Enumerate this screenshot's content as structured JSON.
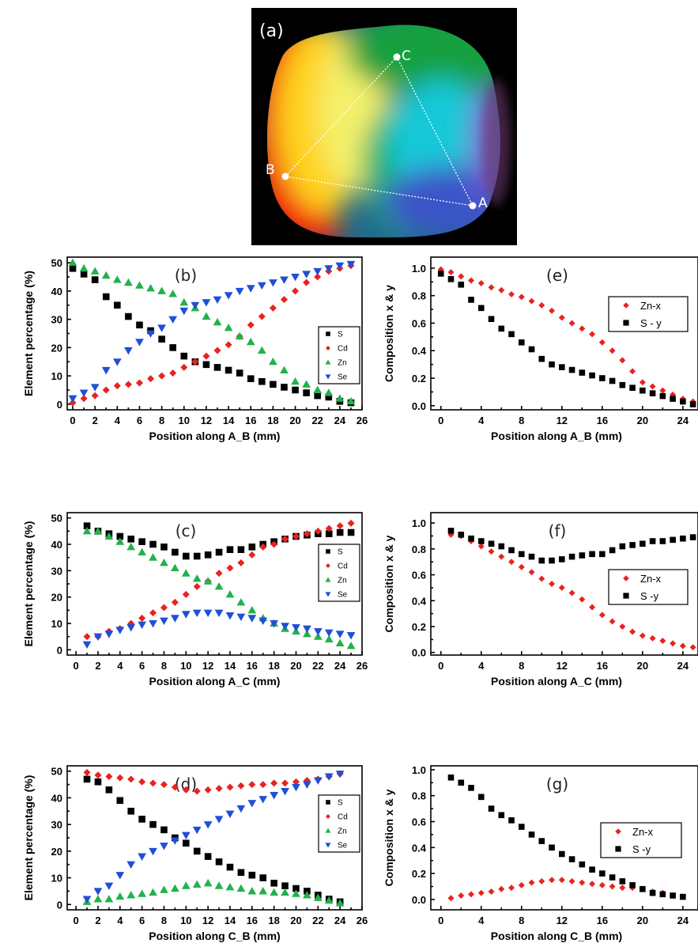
{
  "photo": {
    "label": "(a)",
    "points": [
      "A",
      "B",
      "C"
    ]
  },
  "colors": {
    "S": "#000000",
    "Cd": "#e8231f",
    "Zn": "#22b14c",
    "Se": "#1f4fd6"
  },
  "chart_data": [
    {
      "id": "b",
      "type": "scatter",
      "panel_label": "(b)",
      "xlabel": "Position along A_B (mm)",
      "ylabel": "Element percentage (%)",
      "xlim": [
        -0.5,
        26
      ],
      "ylim": [
        -2,
        52
      ],
      "xticks": [
        0,
        2,
        4,
        6,
        8,
        10,
        12,
        14,
        16,
        18,
        20,
        22,
        24,
        26
      ],
      "yticks": [
        0,
        10,
        20,
        30,
        40,
        50
      ],
      "legend": {
        "position": "right",
        "size": "small"
      },
      "x": [
        0,
        1,
        2,
        3,
        4,
        5,
        6,
        7,
        8,
        9,
        10,
        11,
        12,
        13,
        14,
        15,
        16,
        17,
        18,
        19,
        20,
        21,
        22,
        23,
        24,
        25
      ],
      "series": [
        {
          "name": "S",
          "marker": "square",
          "values": [
            48,
            46,
            44,
            38,
            35,
            31,
            28,
            26,
            23,
            20,
            17,
            15,
            14,
            13,
            12,
            11,
            9,
            8,
            7,
            6,
            5,
            4,
            3,
            2.5,
            1,
            0.5
          ]
        },
        {
          "name": "Cd",
          "marker": "circle",
          "values": [
            0.5,
            2,
            3,
            5,
            6.5,
            7,
            7.5,
            9,
            10,
            11,
            13,
            15,
            17,
            19,
            21,
            24,
            28,
            31,
            34,
            37,
            40,
            43,
            45,
            47,
            48,
            49
          ]
        },
        {
          "name": "Zn",
          "marker": "triangle-up",
          "values": [
            50,
            48,
            47,
            45.5,
            44,
            43,
            42,
            41,
            40,
            39,
            36,
            34,
            31,
            29,
            27,
            24,
            22,
            19,
            15,
            12,
            8,
            7,
            5,
            4,
            2,
            1
          ]
        },
        {
          "name": "Se",
          "marker": "triangle-down",
          "values": [
            2,
            4,
            6,
            12,
            15,
            19,
            22,
            25,
            27,
            30,
            33,
            35,
            36,
            37,
            38.5,
            40,
            41,
            42,
            43,
            44,
            45,
            46,
            47,
            48,
            49,
            49.5
          ]
        }
      ]
    },
    {
      "id": "c",
      "type": "scatter",
      "panel_label": "(c)",
      "xlabel": "Position along A_C (mm)",
      "ylabel": "Element percentage (%)",
      "xlim": [
        -0.8,
        26
      ],
      "ylim": [
        -2,
        52
      ],
      "xticks": [
        0,
        2,
        4,
        6,
        8,
        10,
        12,
        14,
        16,
        18,
        20,
        22,
        24,
        26
      ],
      "yticks": [
        0,
        10,
        20,
        30,
        40,
        50
      ],
      "legend": {
        "position": "right",
        "size": "small"
      },
      "x": [
        1,
        2,
        3,
        4,
        5,
        6,
        7,
        8,
        9,
        10,
        11,
        12,
        13,
        14,
        15,
        16,
        17,
        18,
        19,
        20,
        21,
        22,
        23,
        24,
        25
      ],
      "series": [
        {
          "name": "S",
          "marker": "square",
          "values": [
            47,
            45,
            44,
            43,
            42,
            41,
            40,
            39,
            37,
            35.5,
            35.5,
            36,
            37,
            38,
            38,
            39,
            40,
            41,
            42,
            43,
            43.5,
            44,
            44,
            44.5,
            44.5
          ]
        },
        {
          "name": "Cd",
          "marker": "circle",
          "values": [
            5,
            5,
            7,
            8,
            10,
            12,
            14,
            16,
            18,
            21,
            24,
            26,
            29,
            31,
            33,
            36,
            39,
            40,
            42,
            43,
            44,
            45,
            46,
            47,
            48
          ]
        },
        {
          "name": "Zn",
          "marker": "triangle-up",
          "values": [
            45,
            45,
            43,
            41,
            39,
            37,
            35,
            33,
            31,
            29,
            27,
            26,
            24,
            21,
            18,
            15,
            12,
            10,
            8,
            7,
            6,
            5,
            4,
            2.5,
            1.5
          ]
        },
        {
          "name": "Se",
          "marker": "triangle-down",
          "values": [
            2,
            5,
            6,
            7.5,
            8.5,
            9.5,
            10,
            11,
            12,
            13.5,
            14,
            14,
            14,
            13,
            12.5,
            12,
            11,
            10,
            9,
            8.5,
            8,
            7,
            6.5,
            6,
            5.5
          ]
        }
      ]
    },
    {
      "id": "d",
      "type": "scatter",
      "panel_label": "(d)",
      "xlabel": "Position along C_B (mm)",
      "ylabel": "Element percentage (%)",
      "xlim": [
        -0.8,
        26
      ],
      "ylim": [
        -2,
        52
      ],
      "xticks": [
        0,
        2,
        4,
        6,
        8,
        10,
        12,
        14,
        16,
        18,
        20,
        22,
        24,
        26
      ],
      "yticks": [
        0,
        10,
        20,
        30,
        40,
        50
      ],
      "legend": {
        "position": "right",
        "size": "small"
      },
      "x": [
        1,
        2,
        3,
        4,
        5,
        6,
        7,
        8,
        9,
        10,
        11,
        12,
        13,
        14,
        15,
        16,
        17,
        18,
        19,
        20,
        21,
        22,
        23,
        24
      ],
      "series": [
        {
          "name": "S",
          "marker": "square",
          "values": [
            47,
            46,
            43,
            39,
            35,
            32,
            30,
            28,
            25,
            23,
            20,
            18,
            16,
            14,
            12,
            11,
            10,
            8,
            7,
            6,
            5,
            3.5,
            2,
            1
          ]
        },
        {
          "name": "Cd",
          "marker": "circle",
          "values": [
            49.5,
            48.5,
            48,
            47.5,
            47,
            46,
            45.5,
            45,
            44,
            43,
            42.5,
            43,
            43.5,
            44,
            44.5,
            45,
            45,
            45.5,
            45.5,
            46,
            46.5,
            47,
            48,
            49
          ]
        },
        {
          "name": "Zn",
          "marker": "triangle-up",
          "values": [
            1,
            2,
            2,
            3,
            3.5,
            4,
            4.5,
            5.5,
            6,
            7,
            7.5,
            8,
            7,
            6.5,
            6,
            5,
            5,
            4.5,
            4.5,
            4,
            3.5,
            2.5,
            1.5,
            0.5
          ]
        },
        {
          "name": "Se",
          "marker": "triangle-down",
          "values": [
            2,
            5,
            7,
            11,
            15,
            18,
            20,
            22,
            24,
            26,
            28,
            30,
            32,
            34,
            36,
            38,
            39.5,
            41,
            42.5,
            44,
            45,
            46.5,
            48,
            49
          ]
        }
      ]
    },
    {
      "id": "e",
      "type": "scatter",
      "panel_label": "(e)",
      "xlabel": "Position along A_B (mm)",
      "ylabel": "Composition x & y",
      "xlim": [
        -1,
        25.5
      ],
      "ylim": [
        -0.03,
        1.08
      ],
      "xticks": [
        0,
        4,
        8,
        12,
        16,
        20,
        24
      ],
      "yticks": [
        0.0,
        0.2,
        0.4,
        0.6,
        0.8,
        1.0
      ],
      "legend": {
        "position": "top-right",
        "size": "large"
      },
      "x": [
        0,
        1,
        2,
        3,
        4,
        5,
        6,
        7,
        8,
        9,
        10,
        11,
        12,
        13,
        14,
        15,
        16,
        17,
        18,
        19,
        20,
        21,
        22,
        23,
        24,
        25
      ],
      "series": [
        {
          "name": "Zn-x",
          "marker": "circle",
          "values": [
            0.99,
            0.97,
            0.94,
            0.91,
            0.89,
            0.86,
            0.84,
            0.81,
            0.79,
            0.76,
            0.73,
            0.69,
            0.64,
            0.6,
            0.56,
            0.52,
            0.46,
            0.4,
            0.33,
            0.25,
            0.17,
            0.14,
            0.11,
            0.08,
            0.05,
            0.03
          ]
        },
        {
          "name": "S - y",
          "marker": "square",
          "values": [
            0.96,
            0.92,
            0.88,
            0.77,
            0.71,
            0.63,
            0.56,
            0.52,
            0.46,
            0.41,
            0.34,
            0.3,
            0.28,
            0.26,
            0.24,
            0.22,
            0.2,
            0.18,
            0.15,
            0.13,
            0.11,
            0.09,
            0.07,
            0.05,
            0.03,
            0.01
          ]
        }
      ]
    },
    {
      "id": "f",
      "type": "scatter",
      "panel_label": "(f)",
      "xlabel": "Position along A_C (mm)",
      "ylabel": "Composition x & y",
      "xlim": [
        -1,
        25.5
      ],
      "ylim": [
        -0.02,
        1.08
      ],
      "xticks": [
        0,
        4,
        8,
        12,
        16,
        20,
        24
      ],
      "yticks": [
        0.0,
        0.2,
        0.4,
        0.6,
        0.8,
        1.0
      ],
      "legend": {
        "position": "bottom-right",
        "size": "large"
      },
      "x": [
        1,
        2,
        3,
        4,
        5,
        6,
        7,
        8,
        9,
        10,
        11,
        12,
        13,
        14,
        15,
        16,
        17,
        18,
        19,
        20,
        21,
        22,
        23,
        24,
        25
      ],
      "series": [
        {
          "name": "Zn-x",
          "marker": "circle",
          "values": [
            0.91,
            0.9,
            0.86,
            0.82,
            0.78,
            0.74,
            0.7,
            0.66,
            0.62,
            0.57,
            0.53,
            0.5,
            0.46,
            0.41,
            0.35,
            0.29,
            0.24,
            0.2,
            0.16,
            0.13,
            0.11,
            0.09,
            0.07,
            0.05,
            0.04
          ]
        },
        {
          "name": "S -y",
          "marker": "square",
          "values": [
            0.94,
            0.91,
            0.88,
            0.86,
            0.84,
            0.82,
            0.79,
            0.76,
            0.74,
            0.71,
            0.71,
            0.72,
            0.74,
            0.75,
            0.76,
            0.76,
            0.79,
            0.82,
            0.83,
            0.84,
            0.86,
            0.86,
            0.87,
            0.88,
            0.89
          ]
        }
      ]
    },
    {
      "id": "g",
      "type": "scatter",
      "panel_label": "(g)",
      "xlabel": "Position along C_B (mm)",
      "ylabel": "Composition x & y",
      "xlim": [
        -1,
        25.5
      ],
      "ylim": [
        -0.08,
        1.03
      ],
      "xticks": [
        0,
        4,
        8,
        12,
        16,
        20,
        24
      ],
      "yticks": [
        0.0,
        0.2,
        0.4,
        0.6,
        0.8,
        1.0
      ],
      "legend": {
        "position": "right",
        "size": "large"
      },
      "x": [
        1,
        2,
        3,
        4,
        5,
        6,
        7,
        8,
        9,
        10,
        11,
        12,
        13,
        14,
        15,
        16,
        17,
        18,
        19,
        20,
        21,
        22,
        23,
        24
      ],
      "series": [
        {
          "name": "Zn-x",
          "marker": "circle",
          "values": [
            0.01,
            0.03,
            0.04,
            0.05,
            0.06,
            0.08,
            0.09,
            0.11,
            0.13,
            0.14,
            0.15,
            0.15,
            0.14,
            0.13,
            0.12,
            0.11,
            0.1,
            0.09,
            0.09,
            0.08,
            0.06,
            0.05,
            0.03,
            0.02
          ]
        },
        {
          "name": "S -y",
          "marker": "square",
          "values": [
            0.94,
            0.9,
            0.86,
            0.79,
            0.7,
            0.65,
            0.61,
            0.56,
            0.5,
            0.45,
            0.4,
            0.35,
            0.31,
            0.27,
            0.23,
            0.2,
            0.17,
            0.14,
            0.11,
            0.08,
            0.05,
            0.04,
            0.03,
            0.02
          ]
        }
      ]
    }
  ]
}
